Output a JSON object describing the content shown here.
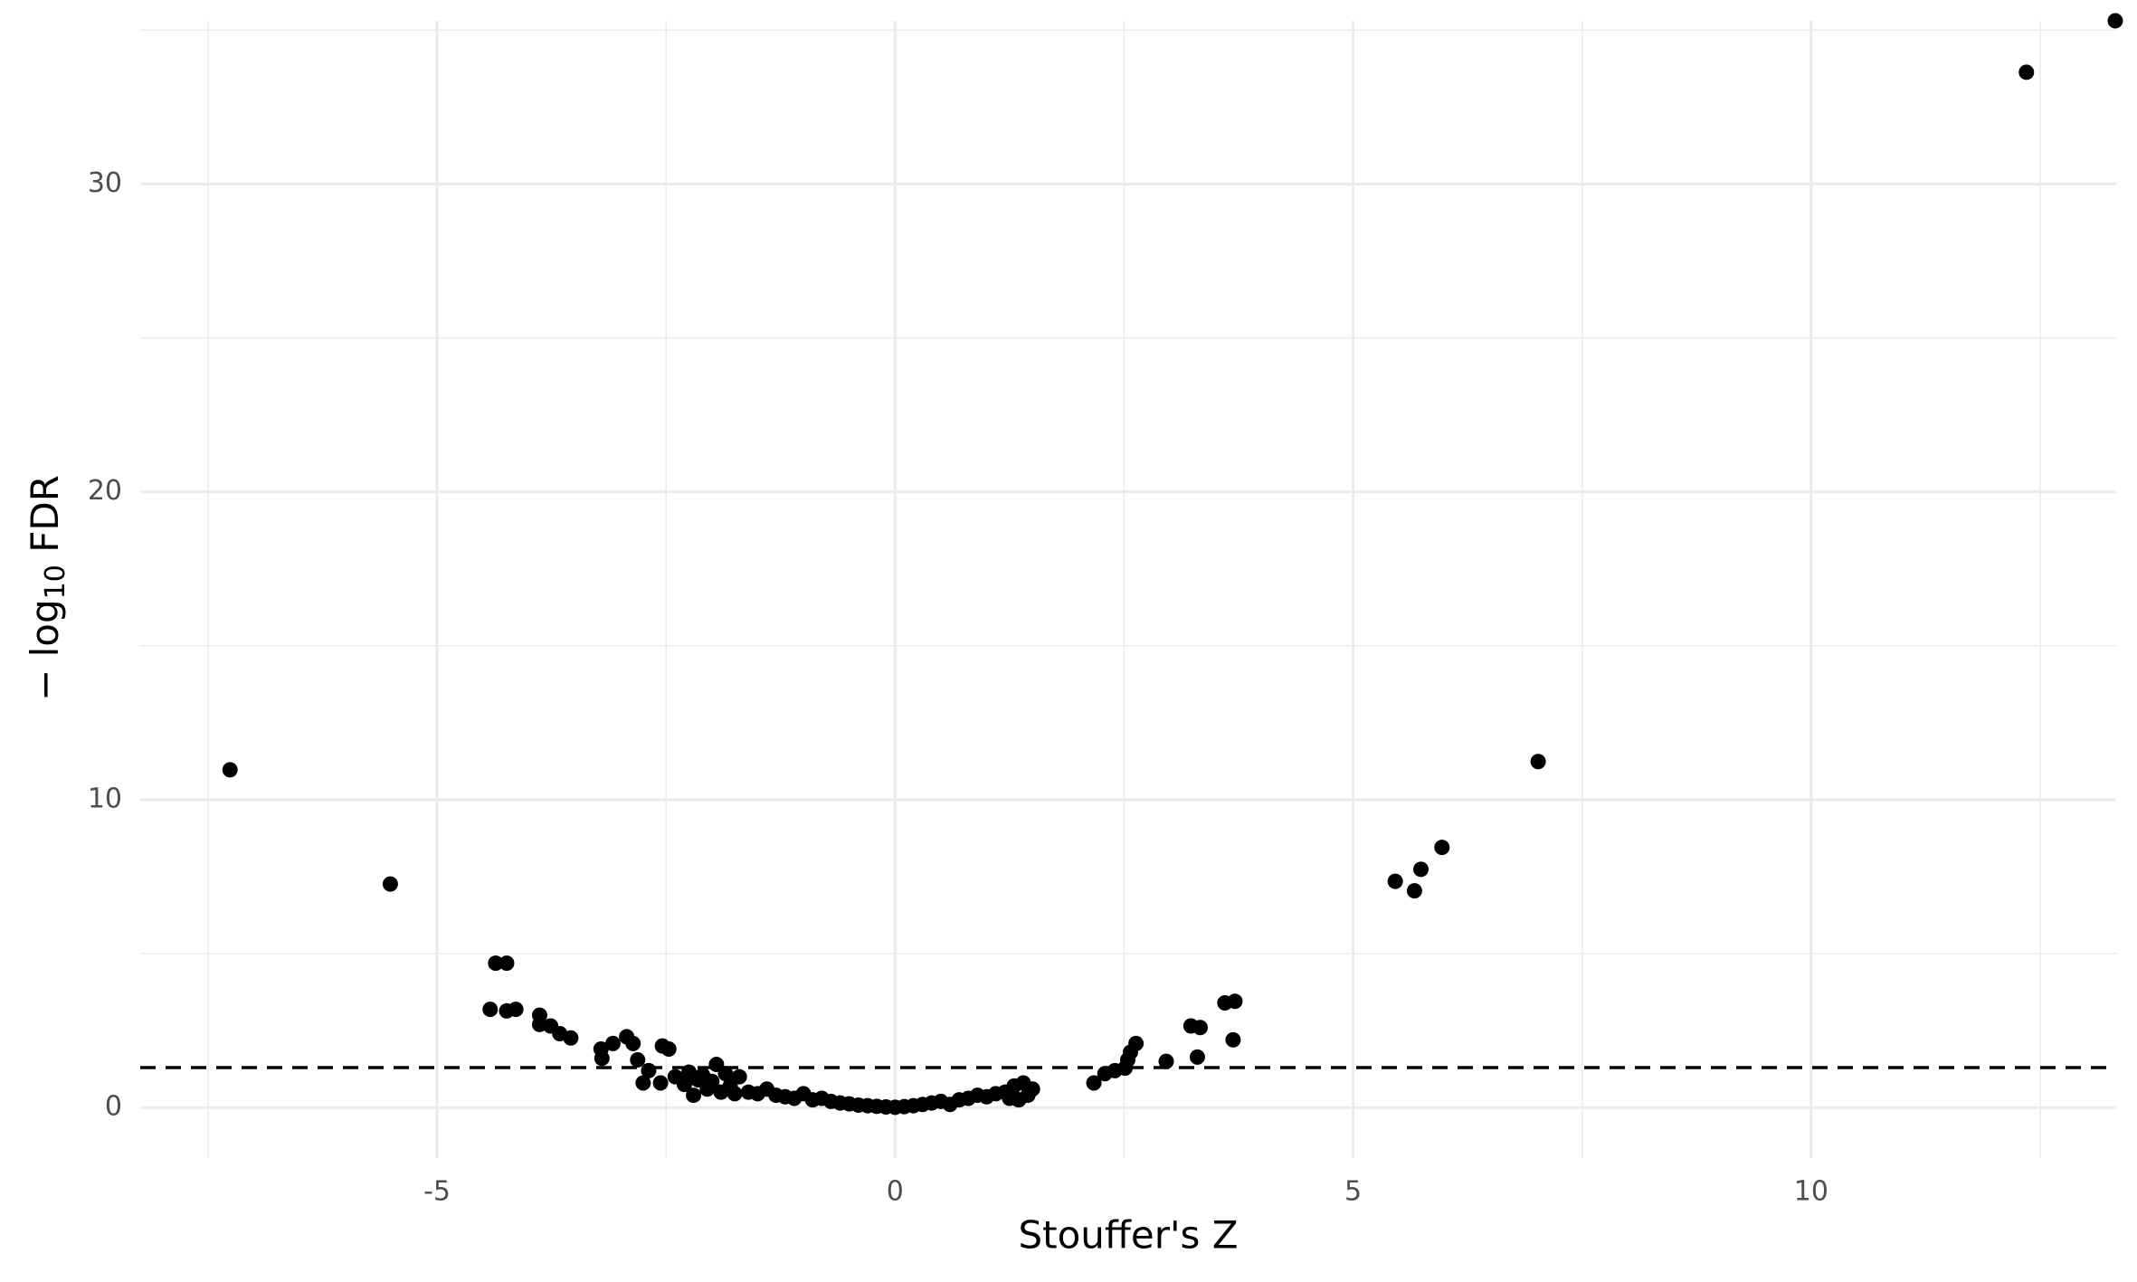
{
  "chart_data": {
    "type": "scatter",
    "x_label": "Stouffer's Z",
    "y_label_parts": [
      "− log",
      "10",
      " FDR"
    ],
    "xlim": [
      -8.24,
      13.33
    ],
    "ylim": [
      -1.64,
      35.3
    ],
    "xticks": [
      -5,
      0,
      5,
      10
    ],
    "yticks": [
      0,
      10,
      20,
      30
    ],
    "x_minor_grid": [
      -7.5,
      -2.5,
      2.5,
      7.5,
      12.5
    ],
    "y_minor_grid": [
      5,
      15,
      25,
      35
    ],
    "grid": true,
    "color": "#000000",
    "hline": 1.3,
    "x": [
      -7.26,
      -5.51,
      -4.36,
      -4.24,
      -4.42,
      -4.24,
      -4.14,
      -3.88,
      -3.88,
      -3.76,
      -3.66,
      -3.54,
      -3.21,
      -3.2,
      -3.08,
      -2.93,
      -2.86,
      -2.81,
      -2.75,
      -2.69,
      -2.54,
      -2.47,
      -2.56,
      -2.4,
      -2.3,
      -2.25,
      -2.2,
      -2.15,
      -2.1,
      -2.05,
      -2.0,
      -1.95,
      -1.9,
      -1.85,
      -1.8,
      -1.75,
      -1.7,
      -1.6,
      -1.5,
      -1.4,
      -1.3,
      -1.2,
      -1.1,
      -1.0,
      -0.9,
      -0.8,
      -0.7,
      -0.6,
      -0.5,
      -0.4,
      -0.3,
      -0.2,
      -0.1,
      0.0,
      0.1,
      0.2,
      0.3,
      0.4,
      0.5,
      0.6,
      0.7,
      0.8,
      0.9,
      1.0,
      1.1,
      1.2,
      1.25,
      1.3,
      1.35,
      1.4,
      1.45,
      1.5,
      2.17,
      2.29,
      2.4,
      2.51,
      2.54,
      2.57,
      2.63,
      2.96,
      3.23,
      3.33,
      3.3,
      3.6,
      3.71,
      3.69,
      5.46,
      5.67,
      5.74,
      5.97,
      7.02,
      12.35,
      13.32
    ],
    "values": [
      10.97,
      7.26,
      4.69,
      4.69,
      3.19,
      3.14,
      3.19,
      3.0,
      2.7,
      2.65,
      2.4,
      2.26,
      1.9,
      1.6,
      2.08,
      2.3,
      2.08,
      1.55,
      0.8,
      1.2,
      2.0,
      1.9,
      0.8,
      1.0,
      0.75,
      1.15,
      0.4,
      0.9,
      1.05,
      0.6,
      0.85,
      1.4,
      0.5,
      1.1,
      0.7,
      0.45,
      1.0,
      0.5,
      0.45,
      0.6,
      0.4,
      0.35,
      0.3,
      0.45,
      0.25,
      0.3,
      0.2,
      0.15,
      0.12,
      0.08,
      0.06,
      0.04,
      0.02,
      0.01,
      0.03,
      0.06,
      0.1,
      0.15,
      0.2,
      0.1,
      0.25,
      0.3,
      0.4,
      0.35,
      0.45,
      0.5,
      0.3,
      0.7,
      0.25,
      0.8,
      0.4,
      0.6,
      0.8,
      1.1,
      1.2,
      1.28,
      1.55,
      1.8,
      2.08,
      1.5,
      2.65,
      2.6,
      1.64,
      3.4,
      3.45,
      2.2,
      7.35,
      7.04,
      7.74,
      8.45,
      11.24,
      33.63,
      35.3
    ]
  }
}
